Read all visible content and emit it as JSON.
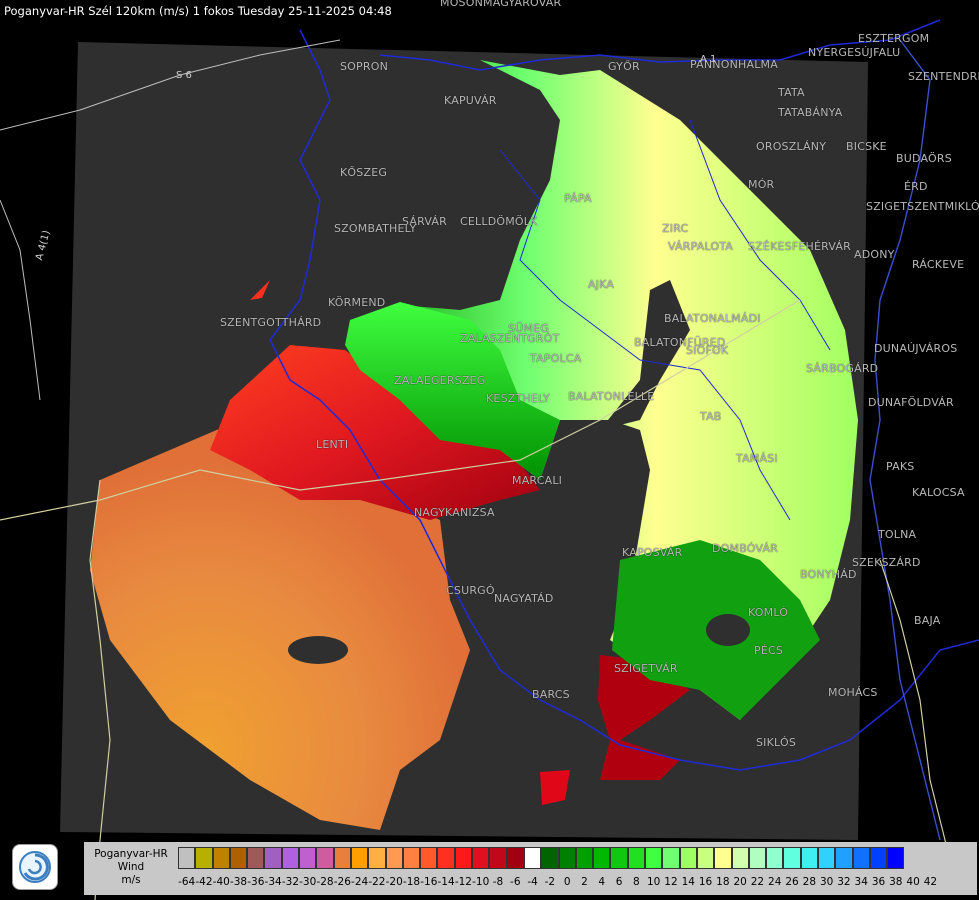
{
  "title": "Poganyvar-HR Szél 120km (m/s) 1 fokos Tuesday 25-11-2025 04:48",
  "colors": {
    "background": "#000000",
    "radar_mask": "#2f2f2f",
    "border_line": "#1f2bd6",
    "road_line": "#cfcfa0",
    "river_line": "#4d6fbf"
  },
  "places": [
    "MOSONMAGYARÓVÁR",
    "SOPRON",
    "GYŐR",
    "ESZTERGOM",
    "NYERGESÚJFALU",
    "SZENTENDRE",
    "KAPUVÁR",
    "TATA",
    "TATABÁNYA",
    "PANNONHALMA",
    "OROSZLÁNY",
    "BICSKE",
    "BUDAÖRS",
    "KŐSZEG",
    "MÓR",
    "ÉRD",
    "PÁPA",
    "SZIGETSZENTMIKLÓS",
    "SÁRVÁR",
    "CELLDÖMÖLK",
    "SZOMBATHELY",
    "ZIRC",
    "VÁRPALOTA",
    "SZÉKESFEHÉRVÁR",
    "ADONY",
    "RÁCKEVE",
    "AJKA",
    "KÖRMEND",
    "SZENTGOTTHÁRD",
    "SÜMEG",
    "BALATONALMÁDI",
    "ZALASZENTGRÓT",
    "TAPOLCA",
    "BALATONFÜRED",
    "SIÓFOK",
    "DUNAÚJVÁROS",
    "ZALAEGERSZEG",
    "SÁRBOGÁRD",
    "KESZTHELY",
    "BALATONLELLE",
    "DUNAFÖLDVÁR",
    "LENTI",
    "TAB",
    "MARCALI",
    "TAMÁSI",
    "PAKS",
    "KALOCSA",
    "NAGYKANIZSA",
    "KAPOSVÁR",
    "DOMBÓVÁR",
    "TOLNA",
    "SZEKSZÁRD",
    "CSURGÓ",
    "NAGYATÁD",
    "BONYHÁD",
    "KOMLÓ",
    "BAJA",
    "PÉCS",
    "SZIGETVÁR",
    "MOHÁCS",
    "BARCS",
    "SIKLÓS"
  ],
  "roads": [
    "S 6",
    "A 4(1)",
    "A 1"
  ],
  "legend": {
    "label_line1": "Poganyvar-HR",
    "label_line2": "Wind",
    "label_line3": "m/s",
    "colors": [
      "#c0c0c0",
      "#b8b000",
      "#c08000",
      "#b06000",
      "#a05858",
      "#a060c0",
      "#b060e0",
      "#c060d0",
      "#d05ca0",
      "#e8803c",
      "#ffa000",
      "#ffb040",
      "#ff9a50",
      "#ff8040",
      "#ff5a28",
      "#ff3020",
      "#ff1818",
      "#e01020",
      "#c00818",
      "#a00010",
      "#ffffff",
      "#006400",
      "#008000",
      "#00a000",
      "#00b800",
      "#10c810",
      "#20e020",
      "#40ff40",
      "#70ff70",
      "#a0ff60",
      "#c8ff80",
      "#ffff90",
      "#d0ffb0",
      "#b0ffc0",
      "#90ffd0",
      "#60ffe0",
      "#40f0f0",
      "#30d0ff",
      "#20a0ff",
      "#1070ff",
      "#0040ff",
      "#0000ff"
    ],
    "ticks": [
      "-64",
      "-42",
      "-40",
      "-38",
      "-36",
      "-34",
      "-32",
      "-30",
      "-28",
      "-26",
      "-24",
      "-22",
      "-20",
      "-18",
      "-16",
      "-14",
      "-12",
      "-10",
      "-8",
      "-6",
      "-4",
      "-2",
      "0",
      "2",
      "4",
      "6",
      "8",
      "10",
      "12",
      "14",
      "16",
      "18",
      "20",
      "22",
      "24",
      "26",
      "28",
      "30",
      "32",
      "34",
      "36",
      "38",
      "40",
      "42"
    ]
  }
}
